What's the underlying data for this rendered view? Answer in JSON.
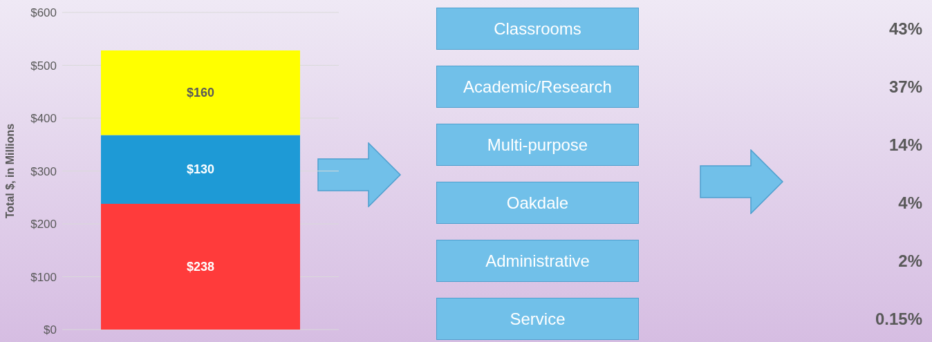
{
  "chart_data": [
    {
      "type": "bar",
      "stacked": true,
      "categories": [
        null
      ],
      "ylabel": "Total $, in Millions",
      "ylim": [
        0,
        600
      ],
      "grid": "y",
      "yticks": [
        {
          "value": 0,
          "label": "$0"
        },
        {
          "value": 100,
          "label": "$100"
        },
        {
          "value": 200,
          "label": "$200"
        },
        {
          "value": 300,
          "label": "$300"
        },
        {
          "value": 400,
          "label": "$400"
        },
        {
          "value": 500,
          "label": "$500"
        },
        {
          "value": 600,
          "label": "$600"
        }
      ],
      "series": [
        {
          "color": "#ff3b3b",
          "values": [
            238
          ],
          "value_labels": [
            "$238"
          ]
        },
        {
          "color": "#1e9ad6",
          "values": [
            130
          ],
          "value_labels": [
            "$130"
          ]
        },
        {
          "color": "#ffff00",
          "values": [
            160
          ],
          "value_labels": [
            "$160"
          ]
        }
      ]
    },
    {
      "type": "other",
      "categories": [
        "Classrooms",
        "Academic/Research",
        "Multi-purpose",
        "Oakdale",
        "Administrative",
        "Service"
      ],
      "value_labels": [
        "43%",
        "37%",
        "14%",
        "4%",
        "2%",
        "0.15%"
      ]
    }
  ]
}
